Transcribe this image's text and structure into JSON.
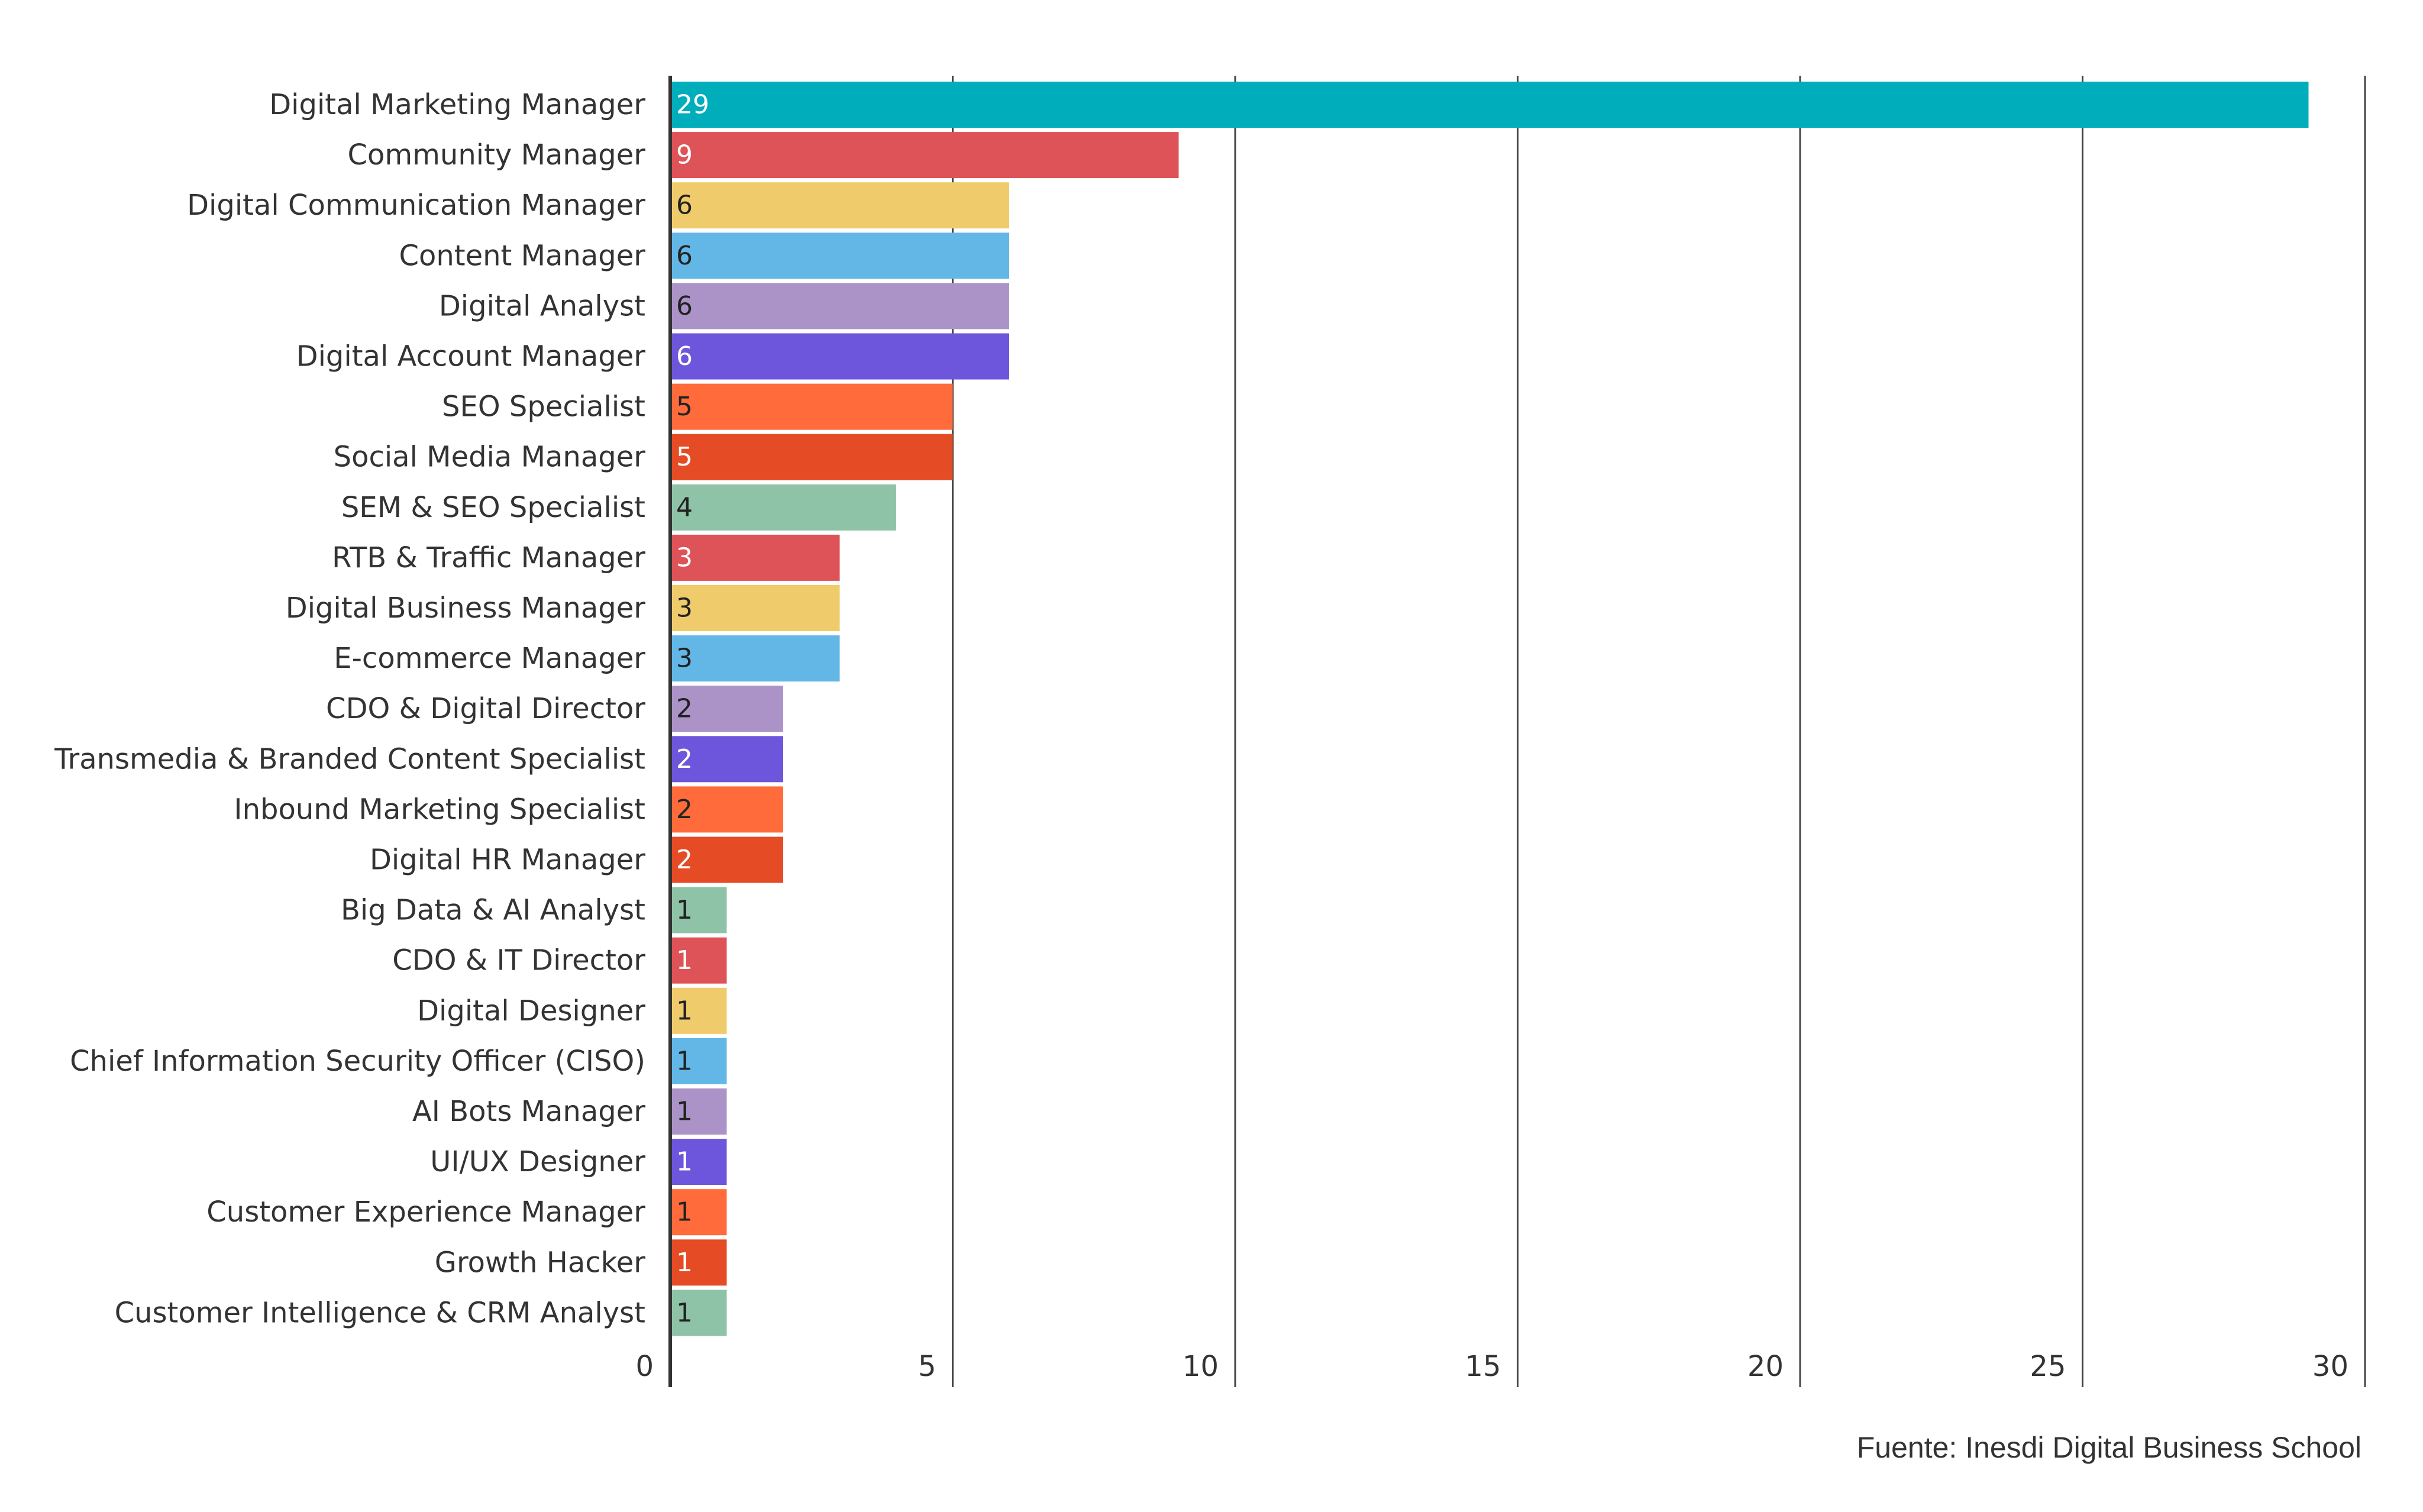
{
  "chart_data": {
    "type": "bar",
    "orientation": "horizontal",
    "categories": [
      "Digital Marketing Manager",
      "Community Manager",
      "Digital Communication Manager",
      "Content Manager",
      "Digital Analyst",
      "Digital Account Manager",
      "SEO Specialist",
      "Social Media Manager",
      "SEM & SEO Specialist",
      "RTB & Traffic Manager",
      "Digital Business Manager",
      "E-commerce Manager",
      "CDO & Digital Director",
      "Transmedia & Branded Content Specialist",
      "Inbound Marketing Specialist",
      "Digital HR Manager",
      "Big Data & AI Analyst",
      "CDO & IT Director",
      "Digital Designer",
      "Chief Information Security Officer (CISO)",
      "AI Bots Manager",
      "UI/UX Designer",
      "Customer Experience Manager",
      "Growth Hacker",
      "Customer Intelligence & CRM Analyst"
    ],
    "values": [
      29,
      9,
      6,
      6,
      6,
      6,
      5,
      5,
      4,
      3,
      3,
      3,
      2,
      2,
      2,
      2,
      1,
      1,
      1,
      1,
      1,
      1,
      1,
      1,
      1
    ],
    "colors": [
      "#00adbb",
      "#de5357",
      "#f0cb6b",
      "#62b7e6",
      "#ac93c7",
      "#6e56dc",
      "#ff6b3b",
      "#e54b24",
      "#8fc3a7",
      "#de5357",
      "#f0cb6b",
      "#62b7e6",
      "#ac93c7",
      "#6e56dc",
      "#ff6b3b",
      "#e54b24",
      "#8fc3a7",
      "#de5357",
      "#f0cb6b",
      "#62b7e6",
      "#ac93c7",
      "#6e56dc",
      "#ff6b3b",
      "#e54b24",
      "#8fc3a7"
    ],
    "label_colors": [
      "#ffffff",
      "#ffffff",
      "#222222",
      "#222222",
      "#222222",
      "#ffffff",
      "#222222",
      "#ffffff",
      "#222222",
      "#ffffff",
      "#222222",
      "#222222",
      "#222222",
      "#ffffff",
      "#222222",
      "#ffffff",
      "#222222",
      "#ffffff",
      "#222222",
      "#222222",
      "#222222",
      "#ffffff",
      "#222222",
      "#ffffff",
      "#222222"
    ],
    "x_ticks": [
      0,
      5,
      10,
      15,
      20,
      25,
      30
    ],
    "xlim": [
      0,
      30
    ],
    "grid": "vertical",
    "source": "Fuente: Inesdi Digital Business School"
  }
}
